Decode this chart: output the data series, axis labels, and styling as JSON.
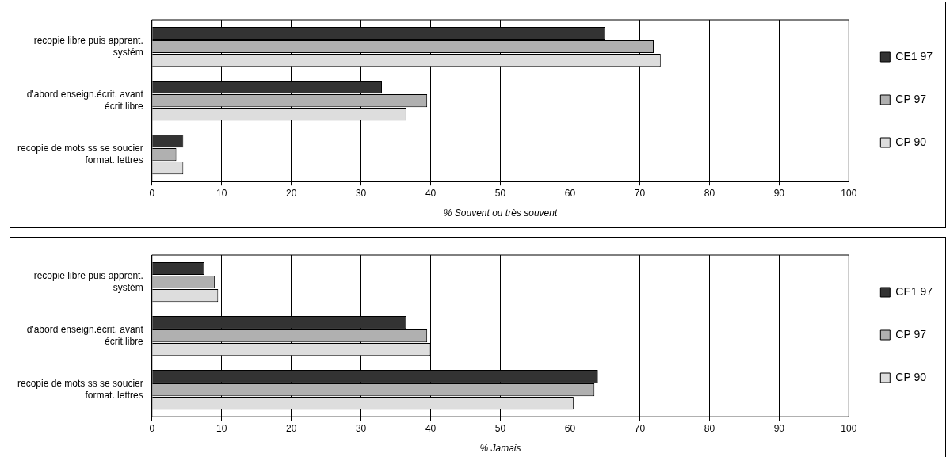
{
  "chart_data": [
    {
      "type": "bar",
      "orientation": "horizontal",
      "xlabel": "% Souvent ou très souvent",
      "categories": [
        "recopie libre puis apprent. systém",
        "d'abord enseign.écrit. avant écrit.libre",
        "recopie de mots ss se soucier format. lettres"
      ],
      "series": [
        {
          "name": "CE1 97",
          "color": "#333333",
          "values": [
            65,
            33,
            4.5
          ]
        },
        {
          "name": "CP 97",
          "color": "#b0b0b0",
          "values": [
            72,
            39.5,
            3.5
          ]
        },
        {
          "name": "CP 90",
          "color": "#dddddd",
          "values": [
            73,
            36.5,
            4.5
          ]
        }
      ],
      "xlim": [
        0,
        100
      ],
      "xticks": [
        0,
        10,
        20,
        30,
        40,
        50,
        60,
        70,
        80,
        90,
        100
      ],
      "grid": "x",
      "legend": "right"
    },
    {
      "type": "bar",
      "orientation": "horizontal",
      "xlabel": "% Jamais",
      "categories": [
        "recopie libre puis apprent. systém",
        "d'abord enseign.écrit. avant écrit.libre",
        "recopie de mots ss se soucier format. lettres"
      ],
      "series": [
        {
          "name": "CE1 97",
          "color": "#333333",
          "values": [
            7.5,
            36.5,
            64
          ]
        },
        {
          "name": "CP 97",
          "color": "#b0b0b0",
          "values": [
            9,
            39.5,
            63.5
          ]
        },
        {
          "name": "CP 90",
          "color": "#dddddd",
          "values": [
            9.5,
            40,
            60.5
          ]
        }
      ],
      "xlim": [
        0,
        100
      ],
      "xticks": [
        0,
        10,
        20,
        30,
        40,
        50,
        60,
        70,
        80,
        90,
        100
      ],
      "grid": "x",
      "legend": "right"
    }
  ]
}
